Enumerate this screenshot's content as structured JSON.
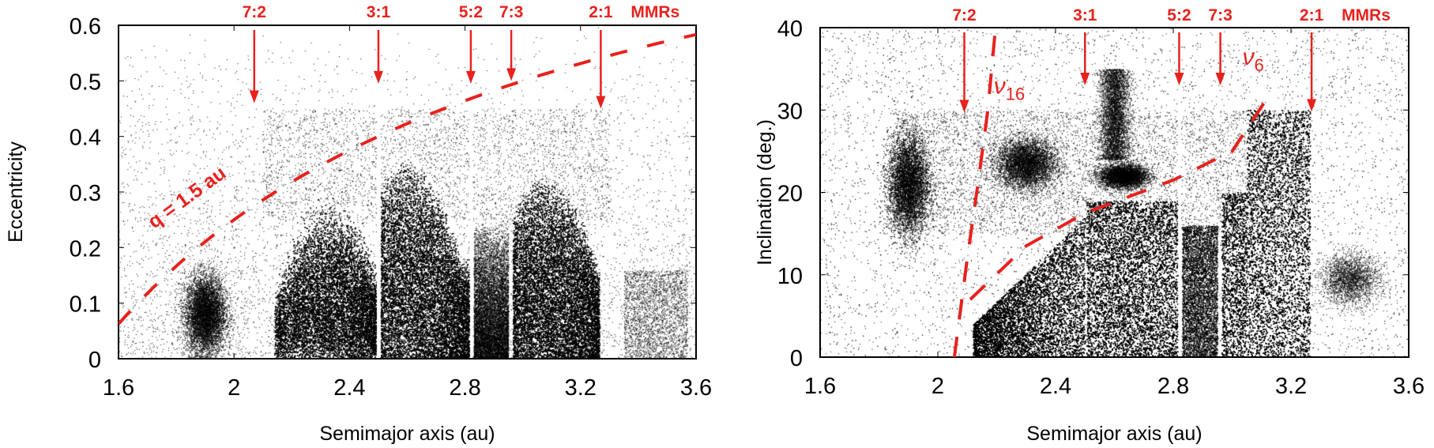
{
  "colors": {
    "annotation": "#e8211d",
    "points": "#000000",
    "frame": "#000000"
  },
  "chart_data": [
    {
      "type": "scatter",
      "xlabel": "Semimajor axis (au)",
      "ylabel": "Eccentricity",
      "xlim": [
        1.6,
        3.6
      ],
      "ylim": [
        0,
        0.6
      ],
      "xticks": [
        "1.6",
        "2",
        "2.4",
        "2.8",
        "3.2",
        "3.6"
      ],
      "yticks": [
        "0",
        "0.1",
        "0.2",
        "0.3",
        "0.4",
        "0.5",
        "0.6"
      ],
      "resonances": [
        {
          "label": "7:2",
          "a": 2.07,
          "tip": 0.46
        },
        {
          "label": "3:1",
          "a": 2.5,
          "tip": 0.495
        },
        {
          "label": "5:2",
          "a": 2.82,
          "tip": 0.495
        },
        {
          "label": "7:3",
          "a": 2.96,
          "tip": 0.5
        },
        {
          "label": "2:1",
          "a": 3.27,
          "tip": 0.45
        }
      ],
      "resonance_group_label": "MMRs",
      "curves": [
        {
          "label": "q = 1.5 au",
          "style": "dashed",
          "equation": "e = 1 - 1.5/a"
        }
      ]
    },
    {
      "type": "scatter",
      "xlabel": "Semimajor axis (au)",
      "ylabel": "Inclination (deg.)",
      "xlim": [
        1.6,
        3.6
      ],
      "ylim": [
        0,
        40
      ],
      "xticks": [
        "1.6",
        "2",
        "2.4",
        "2.8",
        "3.2",
        "3.6"
      ],
      "yticks": [
        "0",
        "10",
        "20",
        "30",
        "40"
      ],
      "resonances": [
        {
          "label": "7:2",
          "a": 2.09,
          "tip": 29.7
        },
        {
          "label": "3:1",
          "a": 2.5,
          "tip": 33
        },
        {
          "label": "5:2",
          "a": 2.82,
          "tip": 33
        },
        {
          "label": "7:3",
          "a": 2.96,
          "tip": 33
        },
        {
          "label": "2:1",
          "a": 3.27,
          "tip": 29.8
        }
      ],
      "resonance_group_label": "MMRs",
      "curves": [
        {
          "label": "ν16",
          "style": "dashed",
          "points": [
            [
              2.056,
              0
            ],
            [
              2.1,
              12
            ],
            [
              2.14,
              22
            ],
            [
              2.17,
              30
            ],
            [
              2.196,
              40
            ]
          ]
        },
        {
          "label": "ν6",
          "style": "dashed",
          "points": [
            [
              2.11,
              7
            ],
            [
              2.3,
              13.5
            ],
            [
              2.5,
              17.5
            ],
            [
              2.8,
              21.5
            ],
            [
              3.0,
              25
            ],
            [
              3.135,
              32.3
            ]
          ]
        }
      ]
    }
  ]
}
